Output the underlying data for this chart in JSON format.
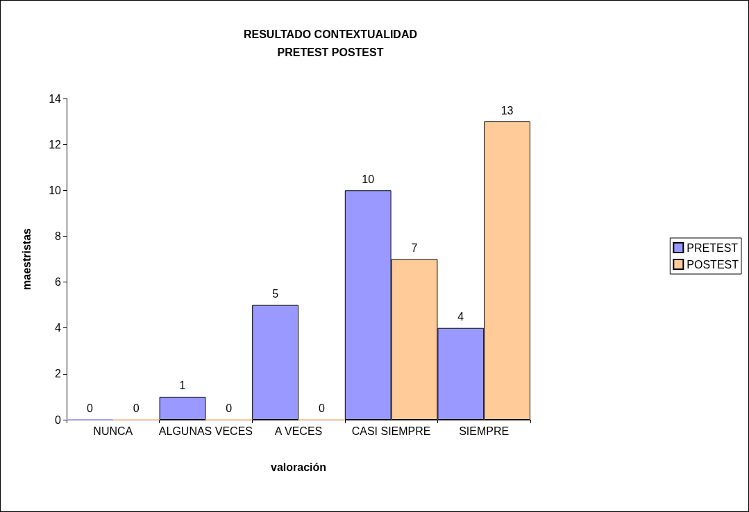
{
  "chart_data": {
    "type": "bar",
    "title": "RESULTADO CONTEXTUALIDAD\nPRETEST POSTEST",
    "xlabel": "valoración",
    "ylabel": "maestristas",
    "categories": [
      "NUNCA",
      "ALGUNAS VECES",
      "A VECES",
      "CASI SIEMPRE",
      "SIEMPRE"
    ],
    "series": [
      {
        "name": "PRETEST",
        "color": "#9999ff",
        "values": [
          0,
          1,
          5,
          10,
          4
        ]
      },
      {
        "name": "POSTEST",
        "color": "#ffcc99",
        "values": [
          0,
          0,
          0,
          7,
          13
        ]
      }
    ],
    "ylim": [
      0,
      14
    ],
    "yticks": [
      0,
      2,
      4,
      6,
      8,
      10,
      12,
      14
    ],
    "data_labels": true,
    "legend": "right",
    "grid": false
  }
}
